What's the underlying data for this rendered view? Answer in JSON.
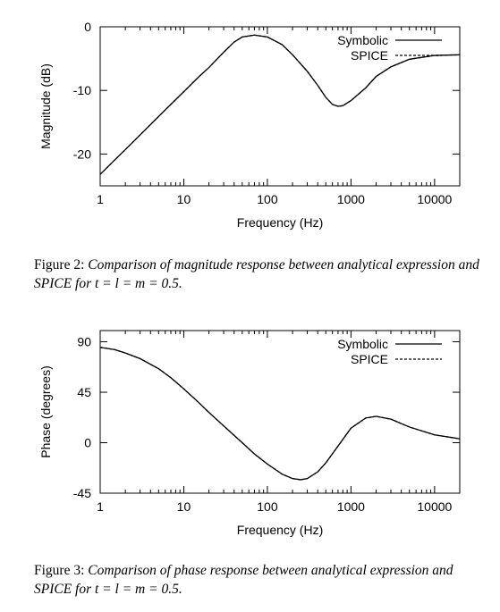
{
  "figures": [
    {
      "caption_label": "Figure 2:",
      "caption_text": "Comparison of magnitude response between analytical expression and SPICE for t = l = m = 0.5."
    },
    {
      "caption_label": "Figure 3:",
      "caption_text": "Comparison of phase response between analytical expression and SPICE for t = l = m = 0.5."
    }
  ],
  "chart_data": [
    {
      "type": "line",
      "xlabel": "Frequency (Hz)",
      "ylabel": "Magnitude (dB)",
      "xscale": "log",
      "xlim": [
        1,
        20000
      ],
      "ylim": [
        -25,
        0
      ],
      "x_ticks": [
        1,
        10,
        100,
        1000,
        10000
      ],
      "x_tick_labels": [
        "1",
        "10",
        "100",
        "1000",
        "10000"
      ],
      "y_ticks": [
        0,
        -10,
        -20
      ],
      "y_tick_labels": [
        "0",
        "-10",
        "-20"
      ],
      "legend_position": "top-right",
      "series": [
        {
          "name": "Symbolic",
          "style": "solid",
          "x": [
            1,
            1.5,
            2,
            3,
            5,
            7,
            10,
            15,
            20,
            30,
            40,
            50,
            70,
            100,
            150,
            200,
            300,
            400,
            500,
            600,
            700,
            800,
            1000,
            1500,
            2000,
            3000,
            5000,
            10000,
            20000
          ],
          "y": [
            -23.2,
            -20.9,
            -19.3,
            -17.0,
            -14.1,
            -12.2,
            -10.2,
            -7.9,
            -6.4,
            -4.0,
            -2.4,
            -1.6,
            -1.3,
            -1.6,
            -2.8,
            -4.4,
            -7.0,
            -9.2,
            -11.1,
            -12.2,
            -12.5,
            -12.4,
            -11.6,
            -9.6,
            -7.8,
            -6.3,
            -5.1,
            -4.5,
            -4.4
          ]
        },
        {
          "name": "SPICE",
          "style": "dashed",
          "x": [
            1,
            1.5,
            2,
            3,
            5,
            7,
            10,
            15,
            20,
            30,
            40,
            50,
            70,
            100,
            150,
            200,
            300,
            400,
            500,
            600,
            700,
            800,
            1000,
            1500,
            2000,
            3000,
            5000,
            10000,
            20000
          ],
          "y": [
            -23.2,
            -20.9,
            -19.3,
            -17.0,
            -14.1,
            -12.2,
            -10.2,
            -7.9,
            -6.4,
            -4.0,
            -2.4,
            -1.6,
            -1.3,
            -1.6,
            -2.8,
            -4.4,
            -7.0,
            -9.2,
            -11.1,
            -12.2,
            -12.5,
            -12.4,
            -11.6,
            -9.6,
            -7.8,
            -6.3,
            -5.1,
            -4.5,
            -4.4
          ]
        }
      ]
    },
    {
      "type": "line",
      "xlabel": "Frequency (Hz)",
      "ylabel": "Phase (degrees)",
      "xscale": "log",
      "xlim": [
        1,
        20000
      ],
      "ylim": [
        -45,
        100
      ],
      "x_ticks": [
        1,
        10,
        100,
        1000,
        10000
      ],
      "x_tick_labels": [
        "1",
        "10",
        "100",
        "1000",
        "10000"
      ],
      "y_ticks": [
        90,
        45,
        0,
        -45
      ],
      "y_tick_labels": [
        "90",
        "45",
        "0",
        "-45"
      ],
      "legend_position": "top-right",
      "series": [
        {
          "name": "Symbolic",
          "style": "solid",
          "x": [
            1,
            1.5,
            2,
            3,
            5,
            7,
            10,
            15,
            20,
            30,
            50,
            70,
            100,
            150,
            200,
            250,
            300,
            400,
            500,
            700,
            1000,
            1500,
            2000,
            3000,
            5000,
            10000,
            20000
          ],
          "y": [
            85,
            83,
            80,
            75,
            66,
            58,
            48,
            36,
            27,
            15,
            0,
            -10,
            -19,
            -28,
            -32,
            -33,
            -32,
            -26,
            -18,
            -3,
            13,
            22,
            23.5,
            21,
            14,
            7,
            3.5
          ]
        },
        {
          "name": "SPICE",
          "style": "dashed",
          "x": [
            1,
            1.5,
            2,
            3,
            5,
            7,
            10,
            15,
            20,
            30,
            50,
            70,
            100,
            150,
            200,
            250,
            300,
            400,
            500,
            700,
            1000,
            1500,
            2000,
            3000,
            5000,
            10000,
            20000
          ],
          "y": [
            85,
            83,
            80,
            75,
            66,
            58,
            48,
            36,
            27,
            15,
            0,
            -10,
            -19,
            -28,
            -32,
            -33,
            -32,
            -26,
            -18,
            -3,
            13,
            22,
            23.5,
            21,
            14,
            7,
            3.5
          ]
        }
      ]
    }
  ]
}
